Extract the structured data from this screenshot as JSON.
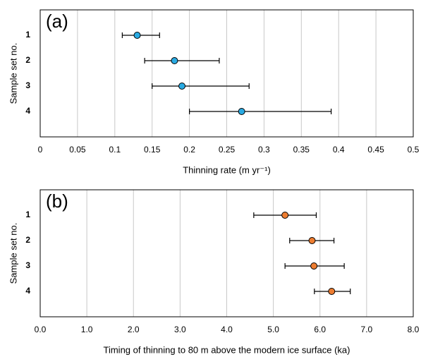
{
  "chart_data": [
    {
      "type": "dot-errorbar",
      "panel_label": "(a)",
      "y_label": "Sample set no.",
      "x_label": "Thinning rate (m yr⁻¹)",
      "categories": [
        "1",
        "2",
        "3",
        "4"
      ],
      "values": [
        0.13,
        0.18,
        0.19,
        0.27
      ],
      "low": [
        0.11,
        0.14,
        0.15,
        0.2
      ],
      "high": [
        0.16,
        0.24,
        0.28,
        0.39
      ],
      "color": "#29aae2",
      "xlim": [
        0,
        0.5
      ],
      "xticks": [
        0,
        0.05,
        0.1,
        0.15,
        0.2,
        0.25,
        0.3,
        0.35,
        0.4,
        0.45,
        0.5
      ],
      "grid": true
    },
    {
      "type": "dot-errorbar",
      "panel_label": "(b)",
      "y_label": "Sample set no.",
      "x_label": "Timing of thinning to 80 m above the modern ice surface (ka)",
      "categories": [
        "1",
        "2",
        "3",
        "4"
      ],
      "values": [
        5.25,
        5.83,
        5.87,
        6.25
      ],
      "low": [
        4.58,
        5.35,
        5.25,
        5.88
      ],
      "high": [
        5.92,
        6.3,
        6.52,
        6.65
      ],
      "color": "#ed7d31",
      "xlim": [
        0,
        8
      ],
      "xticks": [
        {
          "value": 0,
          "label": "0.0"
        },
        {
          "value": 1,
          "label": "1.0"
        },
        {
          "value": 2,
          "label": "2.0"
        },
        {
          "value": 3,
          "label": "3.0"
        },
        {
          "value": 4,
          "label": "4.0"
        },
        {
          "value": 5,
          "label": "5.0"
        },
        {
          "value": 6,
          "label": "6.0"
        },
        {
          "value": 7,
          "label": "7.0"
        },
        {
          "value": 8,
          "label": "8.0"
        }
      ],
      "grid": true
    }
  ]
}
